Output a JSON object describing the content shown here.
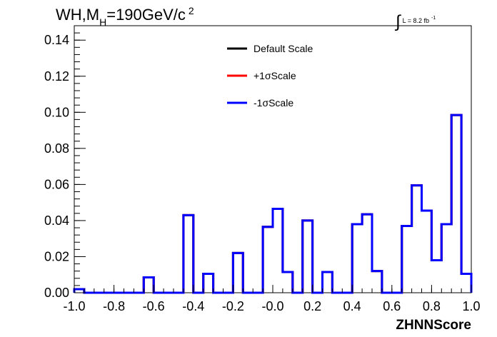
{
  "chart_data": {
    "type": "histogram",
    "title": {
      "main": "WH,M",
      "sub": "H",
      "mid": "=190GeV/c",
      "sup": "2"
    },
    "lumi": {
      "symbol": "∫",
      "text": "L = 8.2 fb",
      "sup": "-1"
    },
    "xlabel": "ZHNNScore",
    "ylabel": "",
    "xlim": [
      -1.0,
      1.0
    ],
    "ylim": [
      0.0,
      0.148
    ],
    "grid": false,
    "legend_position": "top-center",
    "x_tick_labels": [
      "-1.0",
      "-0.8",
      "-0.6",
      "-0.4",
      "-0.2",
      "-0.0",
      "0.2",
      "0.4",
      "0.6",
      "0.8",
      "1.0"
    ],
    "x_tick_values": [
      -1.0,
      -0.8,
      -0.6,
      -0.4,
      -0.2,
      0.0,
      0.2,
      0.4,
      0.6,
      0.8,
      1.0
    ],
    "y_tick_labels": [
      "0.00",
      "0.02",
      "0.04",
      "0.06",
      "0.08",
      "0.10",
      "0.12",
      "0.14"
    ],
    "y_tick_values": [
      0.0,
      0.02,
      0.04,
      0.06,
      0.08,
      0.1,
      0.12,
      0.14
    ],
    "bin_edges": [
      -1.0,
      -0.95,
      -0.9,
      -0.85,
      -0.8,
      -0.75,
      -0.7,
      -0.65,
      -0.6,
      -0.55,
      -0.5,
      -0.45,
      -0.4,
      -0.35,
      -0.3,
      -0.25,
      -0.2,
      -0.15,
      -0.1,
      -0.05,
      0.0,
      0.05,
      0.1,
      0.15,
      0.2,
      0.25,
      0.3,
      0.35,
      0.4,
      0.45,
      0.5,
      0.55,
      0.6,
      0.65,
      0.7,
      0.75,
      0.8,
      0.85,
      0.9,
      0.95,
      1.0
    ],
    "series": [
      {
        "name": "Default Scale",
        "color": "#000000",
        "values": [
          0.002,
          0,
          0,
          0,
          0,
          0,
          0,
          0.0085,
          0,
          0,
          0,
          0.043,
          0,
          0.0105,
          0,
          0,
          0.022,
          0,
          0,
          0.0365,
          0.0465,
          0.0115,
          0,
          0.04,
          0,
          0.0115,
          0,
          0,
          0.038,
          0.0435,
          0.012,
          0,
          0,
          0.037,
          0.0595,
          0.0455,
          0.018,
          0.038,
          0.0985,
          0.0105
        ]
      },
      {
        "name": "+1σScale",
        "color": "#ff0000",
        "values": [
          0.002,
          0,
          0,
          0,
          0,
          0,
          0,
          0.0085,
          0,
          0,
          0,
          0.043,
          0,
          0.0105,
          0,
          0,
          0.022,
          0,
          0,
          0.0365,
          0.0465,
          0.0115,
          0,
          0.04,
          0,
          0.0115,
          0,
          0,
          0.038,
          0.0435,
          0.012,
          0,
          0,
          0.037,
          0.0595,
          0.0455,
          0.018,
          0.038,
          0.0985,
          0.0105
        ]
      },
      {
        "name": "-1σScale",
        "color": "#0000ff",
        "values": [
          0.002,
          0,
          0,
          0,
          0,
          0,
          0,
          0.0085,
          0,
          0,
          0,
          0.043,
          0,
          0.0105,
          0,
          0,
          0.022,
          0,
          0,
          0.0365,
          0.0465,
          0.0115,
          0,
          0.04,
          0,
          0.0115,
          0,
          0,
          0.038,
          0.0435,
          0.012,
          0,
          0,
          0.037,
          0.0595,
          0.0455,
          0.018,
          0.038,
          0.0985,
          0.0105
        ]
      }
    ]
  }
}
